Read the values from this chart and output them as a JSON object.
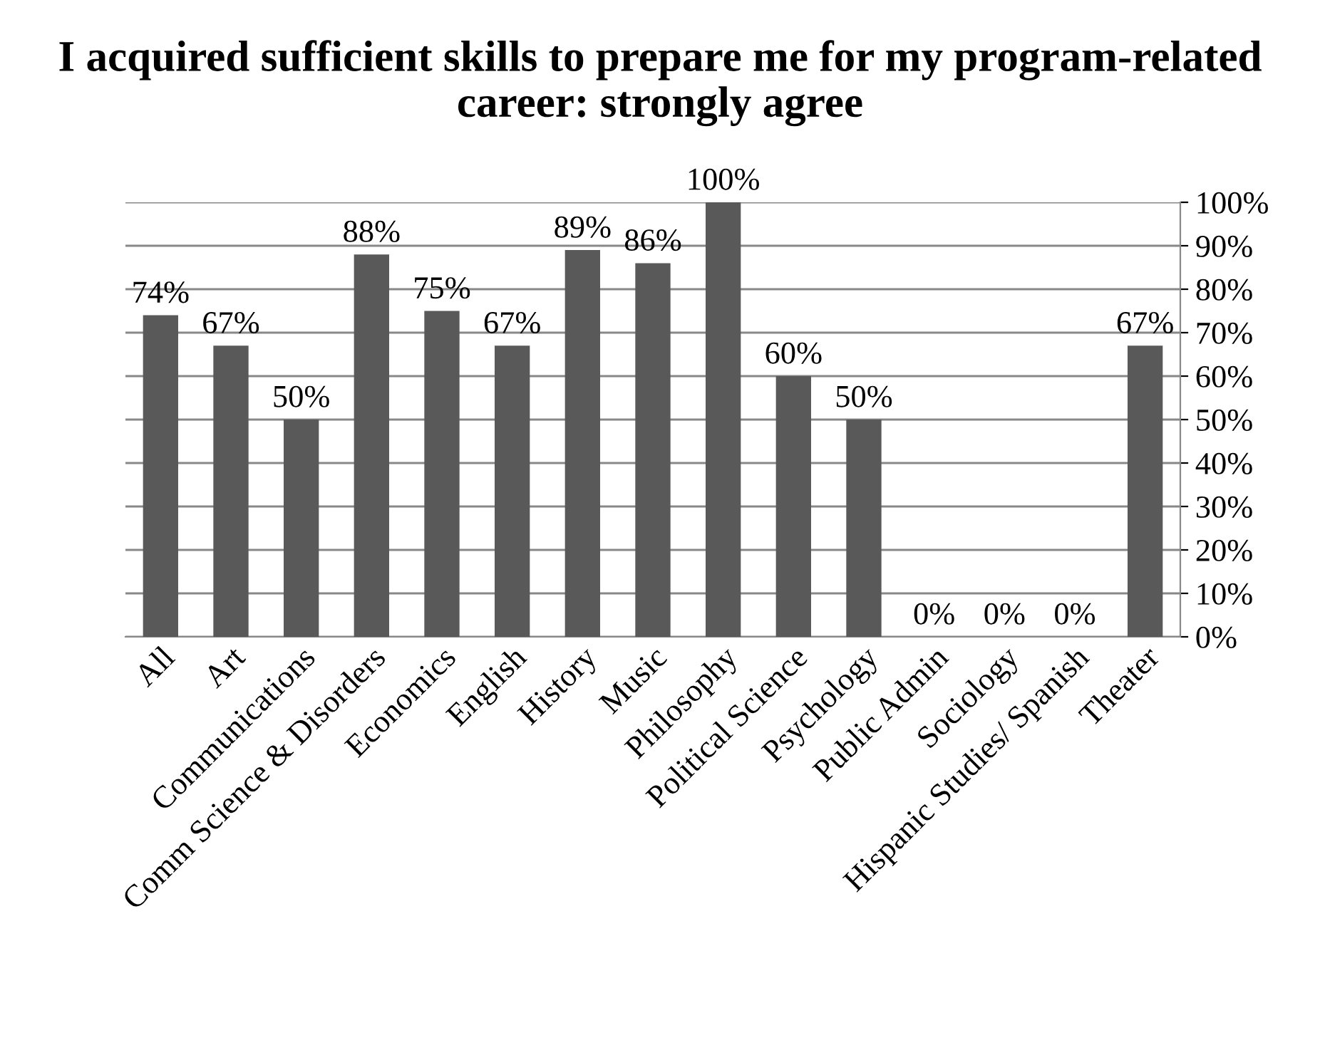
{
  "chart_data": {
    "type": "bar",
    "title": "I acquired sufficient skills to prepare me for my program-related career: strongly agree",
    "categories": [
      "All",
      "Art",
      "Communications",
      "Comm Science & Disorders",
      "Economics",
      "English",
      "History",
      "Music",
      "Philosophy",
      "Political Science",
      "Psychology",
      "Public Admin",
      "Sociology",
      "Hispanic Studies/ Spanish",
      "Theater"
    ],
    "values": [
      74,
      67,
      50,
      88,
      75,
      67,
      89,
      86,
      100,
      60,
      50,
      0,
      0,
      0,
      67
    ],
    "value_labels": [
      "74%",
      "67%",
      "50%",
      "88%",
      "75%",
      "67%",
      "89%",
      "86%",
      "100%",
      "60%",
      "50%",
      "0%",
      "0%",
      "0%",
      "67%"
    ],
    "color": "#595959",
    "ylim": [
      0,
      100
    ],
    "yticks": [
      {
        "value": 0,
        "label": "0%"
      },
      {
        "value": 10,
        "label": "10%"
      },
      {
        "value": 20,
        "label": "20%"
      },
      {
        "value": 30,
        "label": "30%"
      },
      {
        "value": 40,
        "label": "40%"
      },
      {
        "value": 50,
        "label": "50%"
      },
      {
        "value": 60,
        "label": "60%"
      },
      {
        "value": 70,
        "label": "70%"
      },
      {
        "value": 80,
        "label": "80%"
      },
      {
        "value": 90,
        "label": "90%"
      },
      {
        "value": 100,
        "label": "100%"
      }
    ],
    "grid": "y",
    "legend": false
  }
}
